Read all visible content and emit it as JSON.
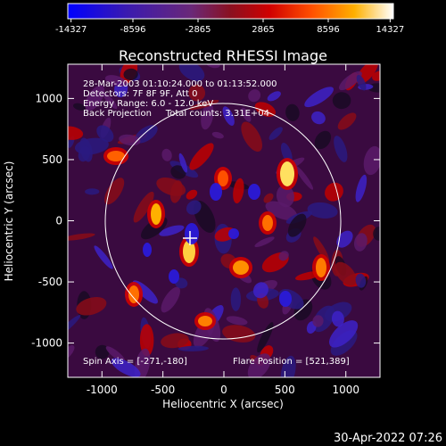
{
  "title": "Reconstructed RHESSI Image",
  "colorbar": {
    "ticks": [
      "-14327",
      "-8596",
      "-2865",
      "2865",
      "8596",
      "14327"
    ],
    "range": [
      -14327,
      14327
    ],
    "colormap": [
      "#0000ff",
      "#4a1fb8",
      "#7a2a7a",
      "#b0001a",
      "#ff2000",
      "#ff8a00",
      "#ffd000",
      "#ffffff"
    ]
  },
  "info_lines": [
    "28-Mar-2003 01:10:24.000 to 01:13:52.000",
    "Detectors: 7F 8F 9F, Att 0",
    "Energy Range: 6.0 - 12.0 keV",
    "Back Projection     Total counts: 3.31E+04"
  ],
  "footer_left": "Spin Axis = [-271,-180]",
  "footer_right": "Flare Position = [521,389]",
  "axes": {
    "xlabel": "Heliocentric X (arcsec)",
    "ylabel": "Heliocentric Y (arcsec)",
    "xticks": [
      "-1000",
      "-500",
      "0",
      "500",
      "1000"
    ],
    "yticks": [
      "1000",
      "500",
      "0",
      "-500",
      "-1000"
    ],
    "xlim": [
      -1280,
      1280
    ],
    "ylim": [
      -1280,
      1280
    ]
  },
  "spin_axis": [
    -271,
    -180
  ],
  "solar_limb_radius_arcsec": 970,
  "timestamp": "30-Apr-2022 07:26"
}
